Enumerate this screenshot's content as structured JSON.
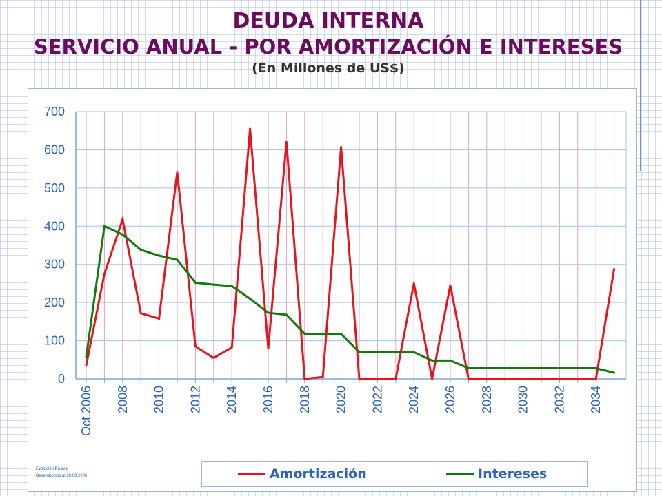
{
  "header": {
    "title": "DEUDA INTERNA",
    "subtitle": "SERVICIO ANUAL - POR AMORTIZACIÓN E INTERESES",
    "units": "(En Millones de US$)"
  },
  "footnote": {
    "line1": "Evolución Pasiva.",
    "line2": "Desembolsos al 30.09.2006"
  },
  "colors": {
    "amortizacion": "#e8141c",
    "intereses": "#0f7a0f",
    "axis_text": "#2b63b5",
    "title": "#6b0a5e",
    "gridline_h": "#9fc3e6",
    "gridline_v": "#e6a0bc"
  },
  "chart_data": {
    "type": "line",
    "categories": [
      "Oct.2006",
      "2007",
      "2008",
      "2009",
      "2010",
      "2011",
      "2012",
      "2013",
      "2014",
      "2015",
      "2016",
      "2017",
      "2018",
      "2019",
      "2020",
      "2021",
      "2022",
      "2023",
      "2024",
      "2025",
      "2026",
      "2027",
      "2028",
      "2029",
      "2030",
      "2031",
      "2032",
      "2033",
      "2034",
      "2035"
    ],
    "x_tick_labels": [
      "Oct.2006",
      "",
      "2008",
      "",
      "2010",
      "",
      "2012",
      "",
      "2014",
      "",
      "2016",
      "",
      "2018",
      "",
      "2020",
      "",
      "2022",
      "",
      "2024",
      "",
      "2026",
      "",
      "2028",
      "",
      "2030",
      "",
      "2032",
      "",
      "2034",
      ""
    ],
    "series": [
      {
        "name": "Amortización",
        "color": "#e8141c",
        "values": [
          35,
          275,
          418,
          172,
          158,
          542,
          85,
          55,
          82,
          655,
          80,
          620,
          0,
          5,
          607,
          0,
          0,
          0,
          250,
          0,
          245,
          0,
          0,
          0,
          0,
          0,
          0,
          0,
          0,
          288
        ]
      },
      {
        "name": "Intereses",
        "color": "#0f7a0f",
        "values": [
          57,
          400,
          378,
          338,
          323,
          312,
          252,
          247,
          243,
          210,
          173,
          168,
          118,
          118,
          118,
          70,
          70,
          70,
          70,
          48,
          48,
          28,
          28,
          28,
          28,
          28,
          28,
          28,
          28,
          16
        ]
      }
    ],
    "y_ticks": [
      0,
      100,
      200,
      300,
      400,
      500,
      600,
      700
    ],
    "ylim": [
      0,
      700
    ],
    "grid": true,
    "legend_position": "bottom"
  }
}
